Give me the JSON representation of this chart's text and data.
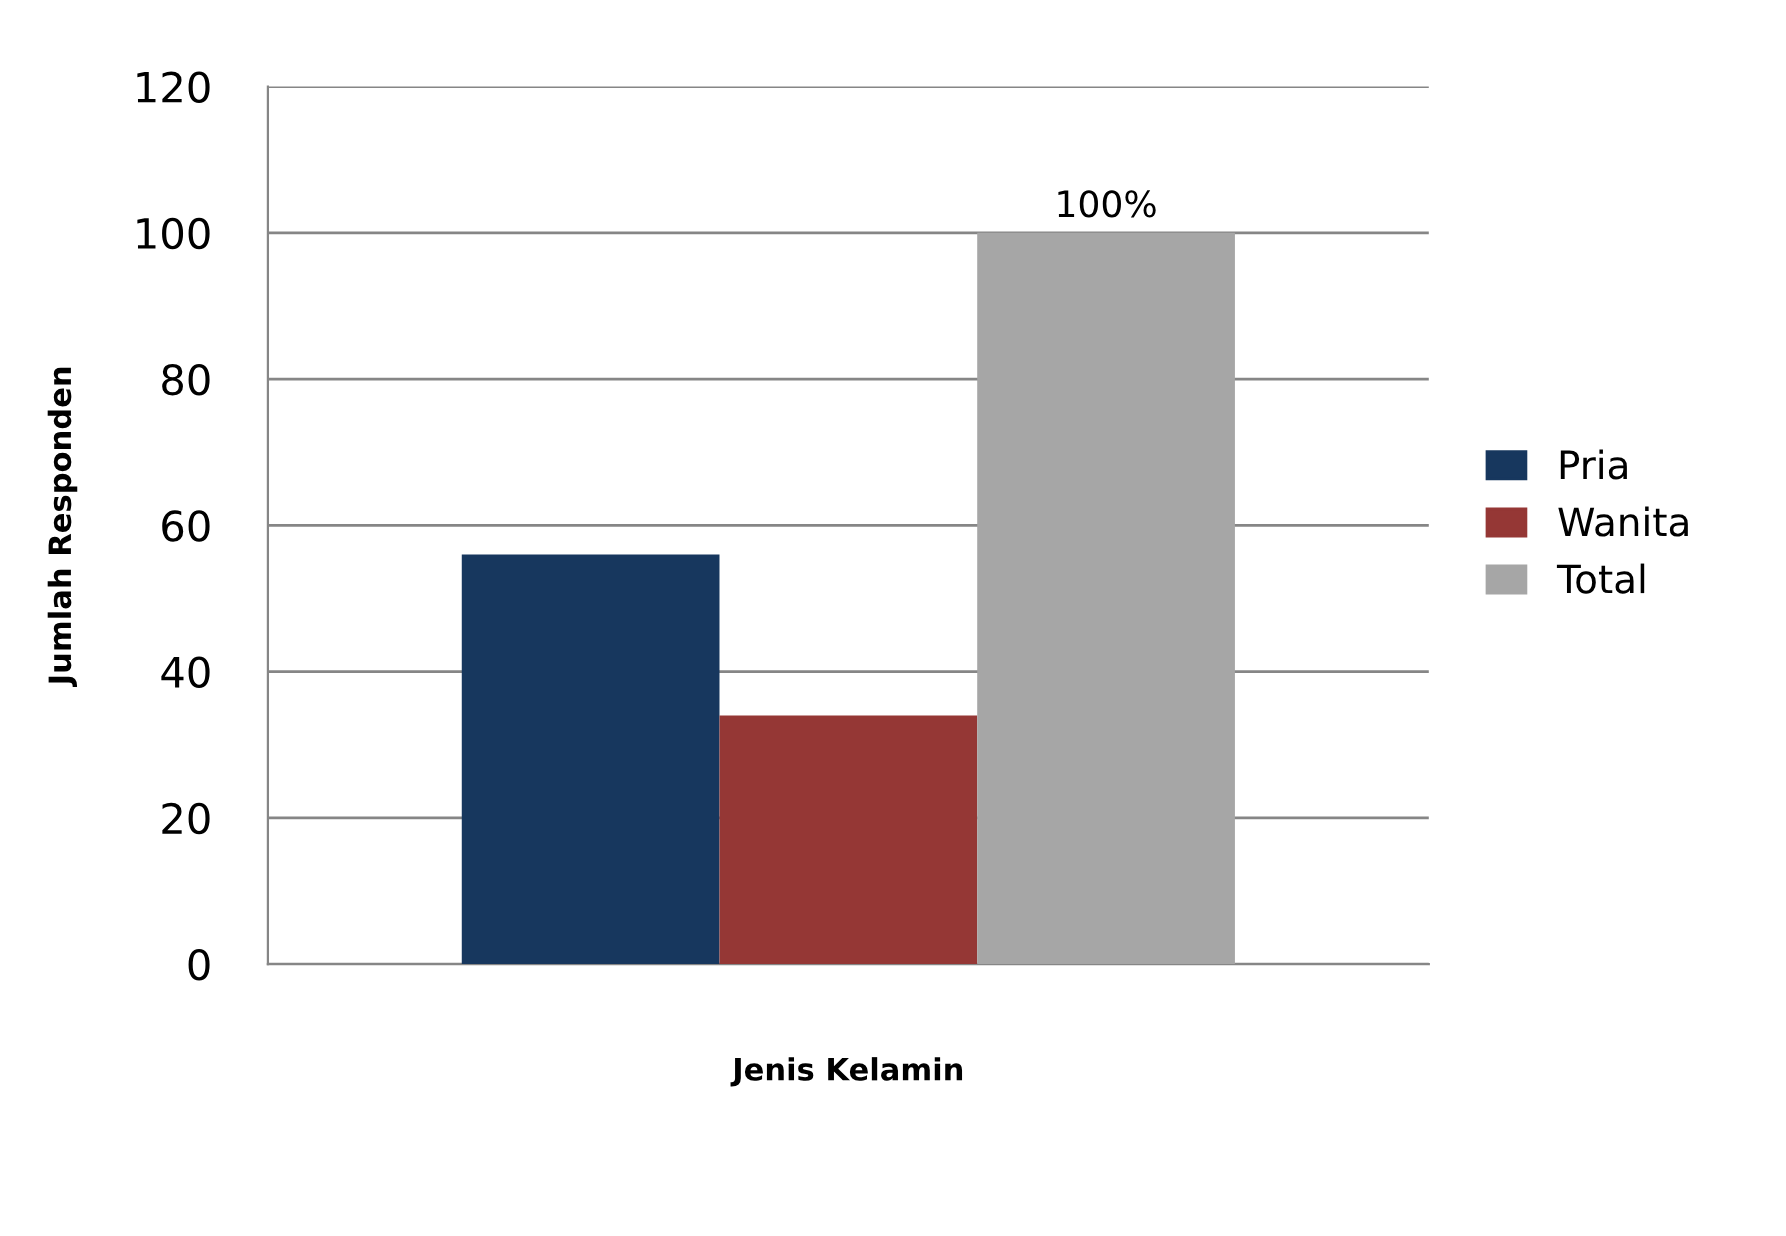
{
  "chart_data": {
    "type": "bar",
    "xlabel": "Jenis Kelamin",
    "ylabel": "Jumlah Responden",
    "categories": [
      null
    ],
    "series": [
      {
        "name": "Pria",
        "color": "#17375e",
        "values": [
          56
        ]
      },
      {
        "name": "Wanita",
        "color": "#953735",
        "values": [
          34
        ]
      },
      {
        "name": "Total",
        "color": "#a6a6a6",
        "values": [
          100
        ],
        "value_labels": [
          "100%"
        ]
      }
    ],
    "ylim": [
      0,
      120
    ],
    "yticks": [
      0,
      20,
      40,
      60,
      80,
      100,
      120
    ],
    "grid": "y",
    "legend": "right"
  }
}
